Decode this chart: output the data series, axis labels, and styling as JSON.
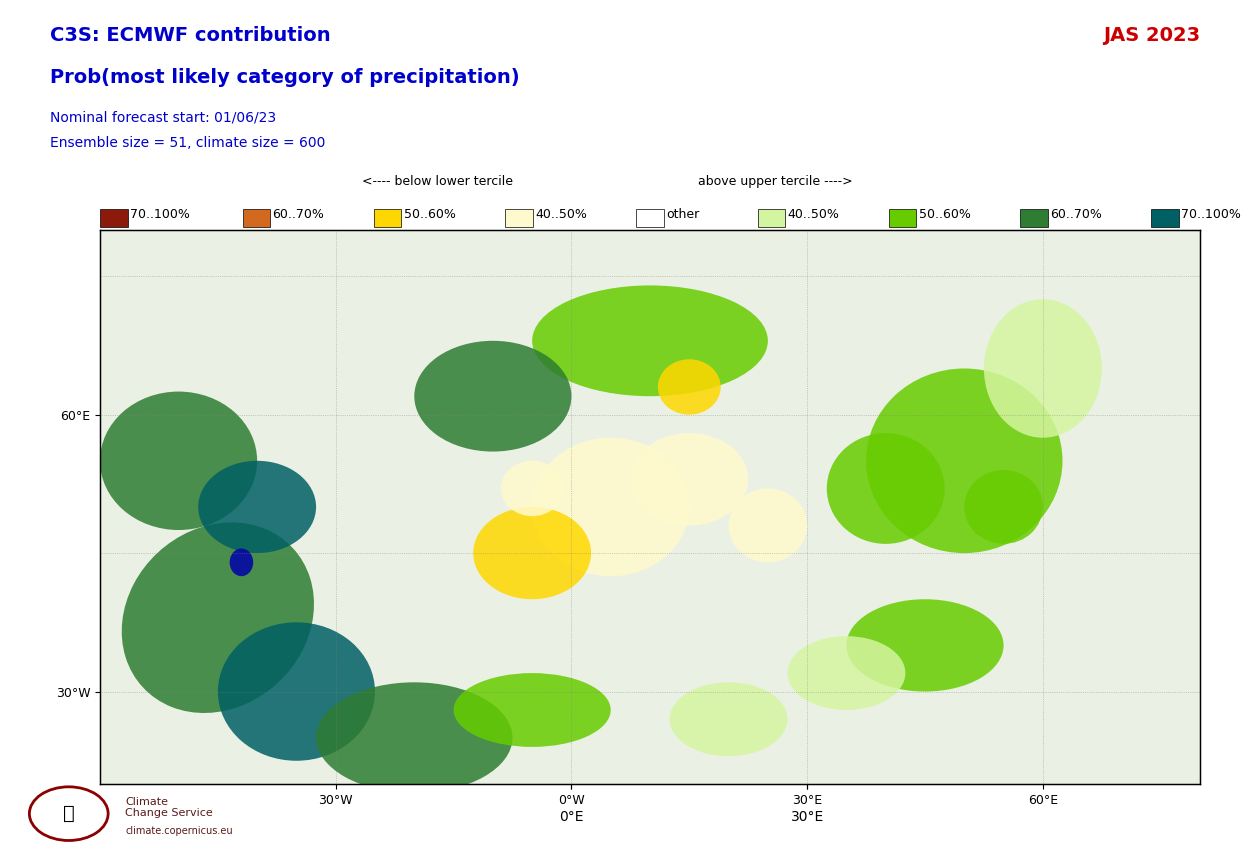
{
  "title_line1": "C3S: ECMWF contribution",
  "title_line2": "Prob(most likely category of precipitation)",
  "subtitle_line1": "Nominal forecast start: 01/06/23",
  "subtitle_line2": "Ensemble size = 51, climate size = 600",
  "period_label": "JAS 2023",
  "title_color": "#0000cc",
  "subtitle_color": "#0000cc",
  "period_color": "#cc0000",
  "below_label": "<---- below lower tercile",
  "above_label": "above upper tercile ---->",
  "legend_below": [
    {
      "label": "70..100%",
      "color": "#8B1A0A"
    },
    {
      "label": "60..70%",
      "color": "#D2691E"
    },
    {
      "label": "50..60%",
      "color": "#FFD700"
    },
    {
      "label": "40..50%",
      "color": "#FFFACD"
    },
    {
      "label": "other",
      "color": "#FFFFFF"
    }
  ],
  "legend_above": [
    {
      "label": "40..50%",
      "color": "#D4F5A0"
    },
    {
      "label": "50..60%",
      "color": "#66CC00"
    },
    {
      "label": "60..70%",
      "color": "#2E7D32"
    },
    {
      "label": "70..100%",
      "color": "#006064"
    }
  ],
  "map_image_placeholder": true,
  "background_color": "#FFFFFF",
  "fig_width": 12.5,
  "fig_height": 8.52
}
